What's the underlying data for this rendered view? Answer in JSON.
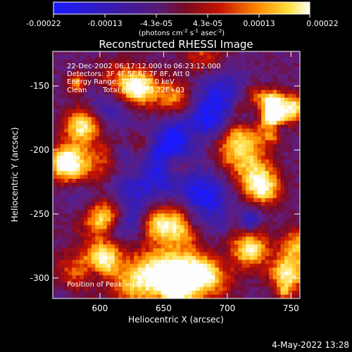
{
  "colorbar": {
    "tick_labels": [
      "-0.00022",
      "-0.00013",
      "-4.3e-05",
      "4.3e-05",
      "0.00013",
      "0.00022"
    ],
    "unit_text": "(photons cm",
    "unit_sup1": "-2",
    "unit_mid": " s",
    "unit_sup2": "-1",
    "unit_end": " asec",
    "unit_sup3": "-2",
    "unit_close": ")"
  },
  "info": {
    "time_range": "22-Dec-2002 06:17:12.000 to 06:23:12.000",
    "detectors": "Detectors: 3F 4F 5F 6F 7F 8F, Att 0",
    "energy_range": "Energy Range: 12.0 - 25.0 keV",
    "algorithm": "Clean",
    "total_counts": "Total counts: 3.22E+03",
    "peak": "Position of Peak = [574,-301]"
  },
  "footer_date": "4-May-2022 13:28",
  "chart_data": {
    "type": "heatmap",
    "title": "Reconstructed RHESSI Image",
    "xlabel": "Heliocentric X (arcsec)",
    "ylabel": "Heliocentric Y (arcsec)",
    "xlim": [
      563,
      757
    ],
    "ylim": [
      -316,
      -123
    ],
    "xticks": [
      600,
      650,
      700,
      750
    ],
    "yticks": [
      -300,
      -250,
      -200,
      -150
    ],
    "colorbar_range": [
      -0.00022,
      0.00022
    ],
    "colormap": "blue-purple-red-yellow-white",
    "colors": {
      "background": "#000000",
      "text": "#ffffff"
    }
  }
}
